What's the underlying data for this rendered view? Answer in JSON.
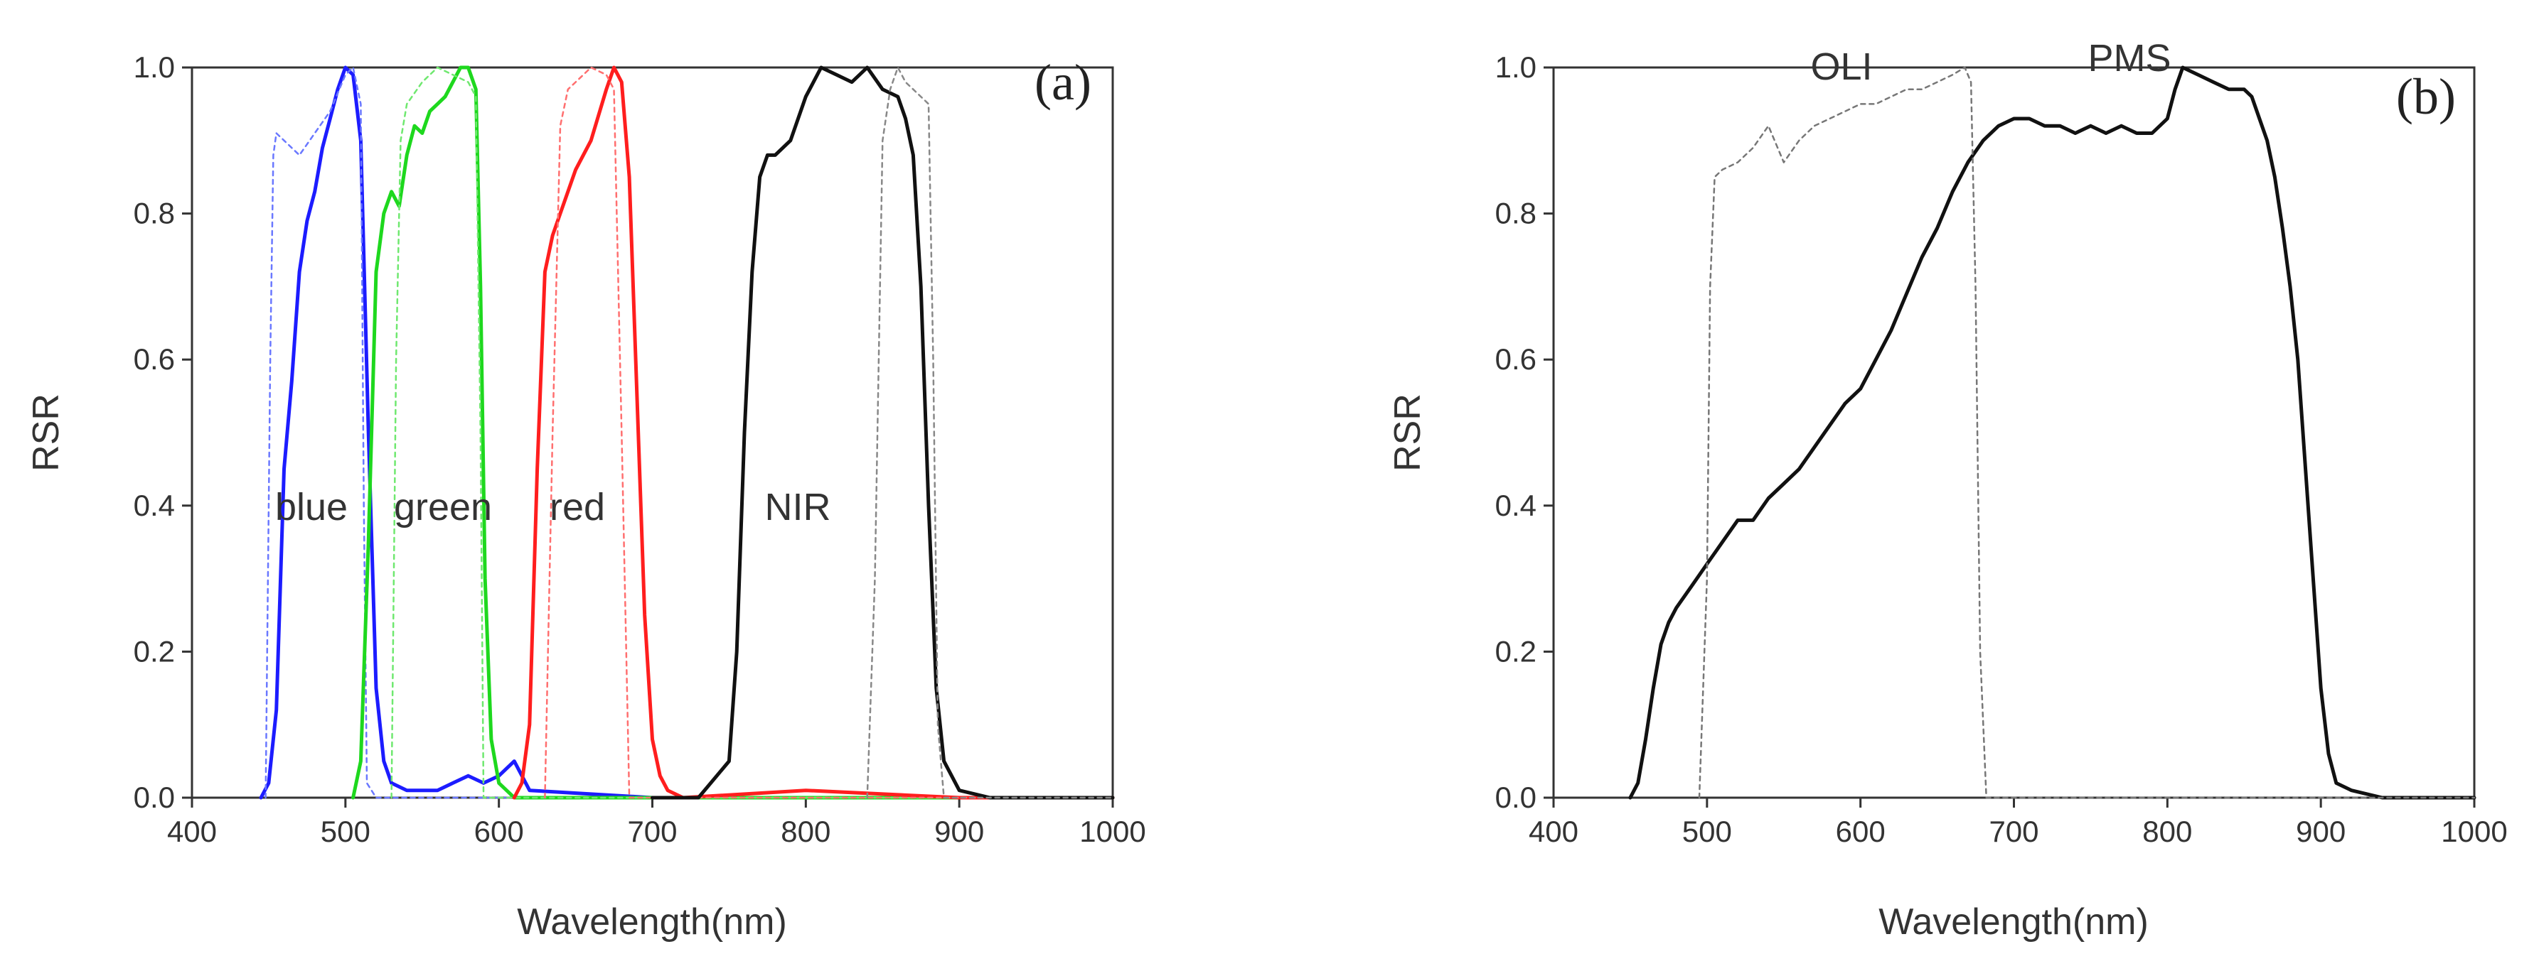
{
  "chart_data": [
    {
      "type": "line",
      "panel": "(a)",
      "xlabel": "Wavelength(nm)",
      "ylabel": "RSR",
      "xlim": [
        400,
        1000
      ],
      "ylim": [
        0,
        1.0
      ],
      "xticks": [
        400,
        500,
        600,
        700,
        800,
        900,
        1000
      ],
      "yticks": [
        0.0,
        0.2,
        0.4,
        0.6,
        0.8,
        1.0
      ],
      "xtick_labels": [
        "400",
        "500",
        "600",
        "700",
        "800",
        "900",
        "1000"
      ],
      "ytick_labels": [
        "0.0",
        "0.2",
        "0.4",
        "0.6",
        "0.8",
        "1.0"
      ],
      "grid": false,
      "annotations": [
        "blue",
        "green",
        "red",
        "NIR"
      ],
      "series": [
        {
          "name": "blue",
          "sensor": "PMS",
          "color": "#1c1cff",
          "dash": "solid",
          "x": [
            445,
            450,
            455,
            460,
            465,
            470,
            475,
            480,
            485,
            490,
            495,
            500,
            505,
            510,
            515,
            520,
            525,
            530,
            540,
            560,
            570,
            580,
            590,
            600,
            610,
            620,
            700,
            1000
          ],
          "y": [
            0,
            0.02,
            0.12,
            0.45,
            0.57,
            0.72,
            0.79,
            0.83,
            0.89,
            0.93,
            0.97,
            1.0,
            0.99,
            0.9,
            0.5,
            0.15,
            0.05,
            0.02,
            0.01,
            0.01,
            0.02,
            0.03,
            0.02,
            0.03,
            0.05,
            0.01,
            0,
            0
          ]
        },
        {
          "name": "blue",
          "sensor": "OLI",
          "color": "#6a78ff",
          "dash": "dotted",
          "x": [
            448,
            451,
            453,
            455,
            460,
            470,
            480,
            490,
            500,
            505,
            510,
            512,
            514,
            520,
            1000
          ],
          "y": [
            0,
            0.6,
            0.88,
            0.91,
            0.9,
            0.88,
            0.91,
            0.94,
            0.99,
            1.0,
            0.95,
            0.4,
            0.02,
            0,
            0
          ]
        },
        {
          "name": "green",
          "sensor": "PMS",
          "color": "#1ed81e",
          "dash": "solid",
          "x": [
            505,
            510,
            515,
            520,
            525,
            530,
            535,
            540,
            545,
            550,
            555,
            560,
            565,
            570,
            575,
            580,
            585,
            588,
            591,
            595,
            600,
            610,
            700,
            1000
          ],
          "y": [
            0,
            0.05,
            0.35,
            0.72,
            0.8,
            0.83,
            0.81,
            0.88,
            0.92,
            0.91,
            0.94,
            0.95,
            0.96,
            0.98,
            1.0,
            1.0,
            0.97,
            0.7,
            0.3,
            0.08,
            0.02,
            0,
            0,
            0
          ]
        },
        {
          "name": "green",
          "sensor": "OLI",
          "color": "#6fe86f",
          "dash": "dotted",
          "x": [
            530,
            533,
            536,
            540,
            550,
            560,
            570,
            580,
            585,
            588,
            590,
            1000
          ],
          "y": [
            0,
            0.6,
            0.9,
            0.95,
            0.98,
            1.0,
            0.99,
            0.98,
            0.96,
            0.5,
            0,
            0
          ]
        },
        {
          "name": "red",
          "sensor": "PMS",
          "color": "#ff1e1e",
          "dash": "solid",
          "x": [
            610,
            615,
            620,
            625,
            630,
            635,
            640,
            650,
            660,
            670,
            675,
            680,
            685,
            690,
            695,
            700,
            705,
            710,
            720,
            800,
            900,
            1000
          ],
          "y": [
            0,
            0.02,
            0.1,
            0.45,
            0.72,
            0.77,
            0.8,
            0.86,
            0.9,
            0.97,
            1.0,
            0.98,
            0.85,
            0.55,
            0.25,
            0.08,
            0.03,
            0.01,
            0,
            0.01,
            0,
            0
          ]
        },
        {
          "name": "red",
          "sensor": "OLI",
          "color": "#ff6f6f",
          "dash": "dotted",
          "x": [
            630,
            635,
            640,
            645,
            650,
            660,
            670,
            675,
            680,
            685,
            1000
          ],
          "y": [
            0,
            0.5,
            0.92,
            0.97,
            0.98,
            1.0,
            0.99,
            0.97,
            0.5,
            0,
            0
          ]
        },
        {
          "name": "NIR",
          "sensor": "PMS",
          "color": "#111111",
          "dash": "solid",
          "x": [
            700,
            730,
            750,
            755,
            760,
            765,
            770,
            775,
            780,
            790,
            800,
            810,
            820,
            830,
            840,
            850,
            860,
            865,
            870,
            875,
            880,
            885,
            890,
            900,
            920,
            1000
          ],
          "y": [
            0,
            0,
            0.05,
            0.2,
            0.5,
            0.72,
            0.85,
            0.88,
            0.88,
            0.9,
            0.96,
            1.0,
            0.99,
            0.98,
            1.0,
            0.97,
            0.96,
            0.93,
            0.88,
            0.7,
            0.4,
            0.15,
            0.05,
            0.01,
            0,
            0
          ]
        },
        {
          "name": "NIR",
          "sensor": "OLI",
          "color": "#888888",
          "dash": "dotted",
          "x": [
            840,
            845,
            850,
            855,
            860,
            865,
            870,
            875,
            880,
            883,
            886,
            890,
            1000
          ],
          "y": [
            0,
            0.3,
            0.9,
            0.97,
            1.0,
            0.98,
            0.97,
            0.96,
            0.95,
            0.6,
            0.1,
            0,
            0
          ]
        }
      ]
    },
    {
      "type": "line",
      "panel": "(b)",
      "xlabel": "Wavelength(nm)",
      "ylabel": "RSR",
      "xlim": [
        400,
        1000
      ],
      "ylim": [
        0,
        1.0
      ],
      "xticks": [
        400,
        500,
        600,
        700,
        800,
        900,
        1000
      ],
      "yticks": [
        0.0,
        0.2,
        0.4,
        0.6,
        0.8,
        1.0
      ],
      "xtick_labels": [
        "400",
        "500",
        "600",
        "700",
        "800",
        "900",
        "1000"
      ],
      "ytick_labels": [
        "0.0",
        "0.2",
        "0.4",
        "0.6",
        "0.8",
        "1.0"
      ],
      "grid": false,
      "annotations": [
        "OLI",
        "PMS"
      ],
      "series": [
        {
          "name": "PMS",
          "color": "#111111",
          "dash": "solid",
          "x": [
            450,
            455,
            460,
            465,
            470,
            475,
            480,
            490,
            500,
            510,
            520,
            530,
            540,
            550,
            560,
            570,
            580,
            590,
            600,
            610,
            620,
            630,
            640,
            650,
            660,
            670,
            680,
            690,
            700,
            710,
            720,
            730,
            740,
            750,
            760,
            770,
            780,
            790,
            800,
            805,
            810,
            820,
            830,
            840,
            850,
            855,
            860,
            865,
            870,
            875,
            880,
            885,
            890,
            895,
            900,
            905,
            910,
            920,
            940,
            1000
          ],
          "y": [
            0,
            0.02,
            0.08,
            0.15,
            0.21,
            0.24,
            0.26,
            0.29,
            0.32,
            0.35,
            0.38,
            0.38,
            0.41,
            0.43,
            0.45,
            0.48,
            0.51,
            0.54,
            0.56,
            0.6,
            0.64,
            0.69,
            0.74,
            0.78,
            0.83,
            0.87,
            0.9,
            0.92,
            0.93,
            0.93,
            0.92,
            0.92,
            0.91,
            0.92,
            0.91,
            0.92,
            0.91,
            0.91,
            0.93,
            0.97,
            1.0,
            0.99,
            0.98,
            0.97,
            0.97,
            0.96,
            0.93,
            0.9,
            0.85,
            0.78,
            0.7,
            0.6,
            0.45,
            0.3,
            0.15,
            0.06,
            0.02,
            0.01,
            0,
            0
          ]
        },
        {
          "name": "OLI",
          "color": "#777777",
          "dash": "dotted",
          "x": [
            495,
            500,
            502,
            505,
            510,
            520,
            530,
            540,
            550,
            560,
            570,
            580,
            590,
            600,
            610,
            620,
            630,
            640,
            650,
            660,
            668,
            672,
            675,
            678,
            682,
            1000
          ],
          "y": [
            0,
            0.3,
            0.7,
            0.85,
            0.86,
            0.87,
            0.89,
            0.92,
            0.87,
            0.9,
            0.92,
            0.93,
            0.94,
            0.95,
            0.95,
            0.96,
            0.97,
            0.97,
            0.98,
            0.99,
            1.0,
            0.98,
            0.7,
            0.2,
            0,
            0
          ]
        }
      ]
    }
  ]
}
